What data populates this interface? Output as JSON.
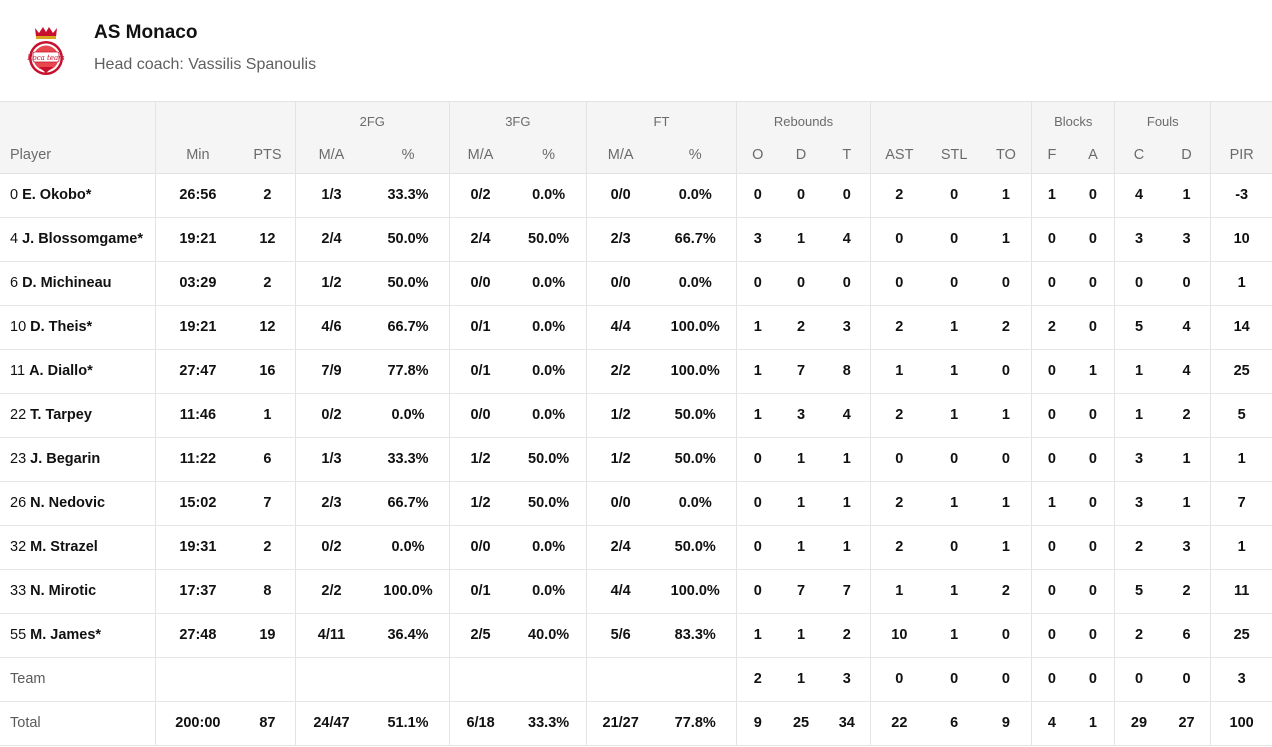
{
  "team": {
    "name": "AS Monaco",
    "coach_label": "Head coach:",
    "coach_name": "Vassilis Spanoulis",
    "logo_text": "Roca team"
  },
  "table": {
    "groups": {
      "fg2": "2FG",
      "fg3": "3FG",
      "ft": "FT",
      "rebounds": "Rebounds",
      "blocks": "Blocks",
      "fouls": "Fouls"
    },
    "columns": {
      "player": "Player",
      "min": "Min",
      "pts": "PTS",
      "fg2_ma": "M/A",
      "fg2_pct": "%",
      "fg3_ma": "M/A",
      "fg3_pct": "%",
      "ft_ma": "M/A",
      "ft_pct": "%",
      "reb_o": "O",
      "reb_d": "D",
      "reb_t": "T",
      "ast": "AST",
      "stl": "STL",
      "to": "TO",
      "blk_f": "F",
      "blk_a": "A",
      "foul_c": "C",
      "foul_d": "D",
      "pir": "PIR"
    },
    "rows": [
      {
        "num": "0",
        "name": "E. Okobo*",
        "min": "26:56",
        "pts": "2",
        "fg2_ma": "1/3",
        "fg2_pct": "33.3%",
        "fg3_ma": "0/2",
        "fg3_pct": "0.0%",
        "ft_ma": "0/0",
        "ft_pct": "0.0%",
        "reb_o": "0",
        "reb_d": "0",
        "reb_t": "0",
        "ast": "2",
        "stl": "0",
        "to": "1",
        "blk_f": "1",
        "blk_a": "0",
        "foul_c": "4",
        "foul_d": "1",
        "pir": "-3"
      },
      {
        "num": "4",
        "name": "J. Blossomgame*",
        "min": "19:21",
        "pts": "12",
        "fg2_ma": "2/4",
        "fg2_pct": "50.0%",
        "fg3_ma": "2/4",
        "fg3_pct": "50.0%",
        "ft_ma": "2/3",
        "ft_pct": "66.7%",
        "reb_o": "3",
        "reb_d": "1",
        "reb_t": "4",
        "ast": "0",
        "stl": "0",
        "to": "1",
        "blk_f": "0",
        "blk_a": "0",
        "foul_c": "3",
        "foul_d": "3",
        "pir": "10"
      },
      {
        "num": "6",
        "name": "D. Michineau",
        "min": "03:29",
        "pts": "2",
        "fg2_ma": "1/2",
        "fg2_pct": "50.0%",
        "fg3_ma": "0/0",
        "fg3_pct": "0.0%",
        "ft_ma": "0/0",
        "ft_pct": "0.0%",
        "reb_o": "0",
        "reb_d": "0",
        "reb_t": "0",
        "ast": "0",
        "stl": "0",
        "to": "0",
        "blk_f": "0",
        "blk_a": "0",
        "foul_c": "0",
        "foul_d": "0",
        "pir": "1"
      },
      {
        "num": "10",
        "name": "D. Theis*",
        "min": "19:21",
        "pts": "12",
        "fg2_ma": "4/6",
        "fg2_pct": "66.7%",
        "fg3_ma": "0/1",
        "fg3_pct": "0.0%",
        "ft_ma": "4/4",
        "ft_pct": "100.0%",
        "reb_o": "1",
        "reb_d": "2",
        "reb_t": "3",
        "ast": "2",
        "stl": "1",
        "to": "2",
        "blk_f": "2",
        "blk_a": "0",
        "foul_c": "5",
        "foul_d": "4",
        "pir": "14"
      },
      {
        "num": "11",
        "name": "A. Diallo*",
        "min": "27:47",
        "pts": "16",
        "fg2_ma": "7/9",
        "fg2_pct": "77.8%",
        "fg3_ma": "0/1",
        "fg3_pct": "0.0%",
        "ft_ma": "2/2",
        "ft_pct": "100.0%",
        "reb_o": "1",
        "reb_d": "7",
        "reb_t": "8",
        "ast": "1",
        "stl": "1",
        "to": "0",
        "blk_f": "0",
        "blk_a": "1",
        "foul_c": "1",
        "foul_d": "4",
        "pir": "25"
      },
      {
        "num": "22",
        "name": "T. Tarpey",
        "min": "11:46",
        "pts": "1",
        "fg2_ma": "0/2",
        "fg2_pct": "0.0%",
        "fg3_ma": "0/0",
        "fg3_pct": "0.0%",
        "ft_ma": "1/2",
        "ft_pct": "50.0%",
        "reb_o": "1",
        "reb_d": "3",
        "reb_t": "4",
        "ast": "2",
        "stl": "1",
        "to": "1",
        "blk_f": "0",
        "blk_a": "0",
        "foul_c": "1",
        "foul_d": "2",
        "pir": "5"
      },
      {
        "num": "23",
        "name": "J. Begarin",
        "min": "11:22",
        "pts": "6",
        "fg2_ma": "1/3",
        "fg2_pct": "33.3%",
        "fg3_ma": "1/2",
        "fg3_pct": "50.0%",
        "ft_ma": "1/2",
        "ft_pct": "50.0%",
        "reb_o": "0",
        "reb_d": "1",
        "reb_t": "1",
        "ast": "0",
        "stl": "0",
        "to": "0",
        "blk_f": "0",
        "blk_a": "0",
        "foul_c": "3",
        "foul_d": "1",
        "pir": "1"
      },
      {
        "num": "26",
        "name": "N. Nedovic",
        "min": "15:02",
        "pts": "7",
        "fg2_ma": "2/3",
        "fg2_pct": "66.7%",
        "fg3_ma": "1/2",
        "fg3_pct": "50.0%",
        "ft_ma": "0/0",
        "ft_pct": "0.0%",
        "reb_o": "0",
        "reb_d": "1",
        "reb_t": "1",
        "ast": "2",
        "stl": "1",
        "to": "1",
        "blk_f": "1",
        "blk_a": "0",
        "foul_c": "3",
        "foul_d": "1",
        "pir": "7"
      },
      {
        "num": "32",
        "name": "M. Strazel",
        "min": "19:31",
        "pts": "2",
        "fg2_ma": "0/2",
        "fg2_pct": "0.0%",
        "fg3_ma": "0/0",
        "fg3_pct": "0.0%",
        "ft_ma": "2/4",
        "ft_pct": "50.0%",
        "reb_o": "0",
        "reb_d": "1",
        "reb_t": "1",
        "ast": "2",
        "stl": "0",
        "to": "1",
        "blk_f": "0",
        "blk_a": "0",
        "foul_c": "2",
        "foul_d": "3",
        "pir": "1"
      },
      {
        "num": "33",
        "name": "N. Mirotic",
        "min": "17:37",
        "pts": "8",
        "fg2_ma": "2/2",
        "fg2_pct": "100.0%",
        "fg3_ma": "0/1",
        "fg3_pct": "0.0%",
        "ft_ma": "4/4",
        "ft_pct": "100.0%",
        "reb_o": "0",
        "reb_d": "7",
        "reb_t": "7",
        "ast": "1",
        "stl": "1",
        "to": "2",
        "blk_f": "0",
        "blk_a": "0",
        "foul_c": "5",
        "foul_d": "2",
        "pir": "11"
      },
      {
        "num": "55",
        "name": "M. James*",
        "min": "27:48",
        "pts": "19",
        "fg2_ma": "4/11",
        "fg2_pct": "36.4%",
        "fg3_ma": "2/5",
        "fg3_pct": "40.0%",
        "ft_ma": "5/6",
        "ft_pct": "83.3%",
        "reb_o": "1",
        "reb_d": "1",
        "reb_t": "2",
        "ast": "10",
        "stl": "1",
        "to": "0",
        "blk_f": "0",
        "blk_a": "0",
        "foul_c": "2",
        "foul_d": "6",
        "pir": "25"
      }
    ],
    "team_row": {
      "label": "Team",
      "min": "",
      "pts": "",
      "fg2_ma": "",
      "fg2_pct": "",
      "fg3_ma": "",
      "fg3_pct": "",
      "ft_ma": "",
      "ft_pct": "",
      "reb_o": "2",
      "reb_d": "1",
      "reb_t": "3",
      "ast": "0",
      "stl": "0",
      "to": "0",
      "blk_f": "0",
      "blk_a": "0",
      "foul_c": "0",
      "foul_d": "0",
      "pir": "3"
    },
    "total_row": {
      "label": "Total",
      "min": "200:00",
      "pts": "87",
      "fg2_ma": "24/47",
      "fg2_pct": "51.1%",
      "fg3_ma": "6/18",
      "fg3_pct": "33.3%",
      "ft_ma": "21/27",
      "ft_pct": "77.8%",
      "reb_o": "9",
      "reb_d": "25",
      "reb_t": "34",
      "ast": "22",
      "stl": "6",
      "to": "9",
      "blk_f": "4",
      "blk_a": "1",
      "foul_c": "29",
      "foul_d": "27",
      "pir": "100"
    }
  }
}
